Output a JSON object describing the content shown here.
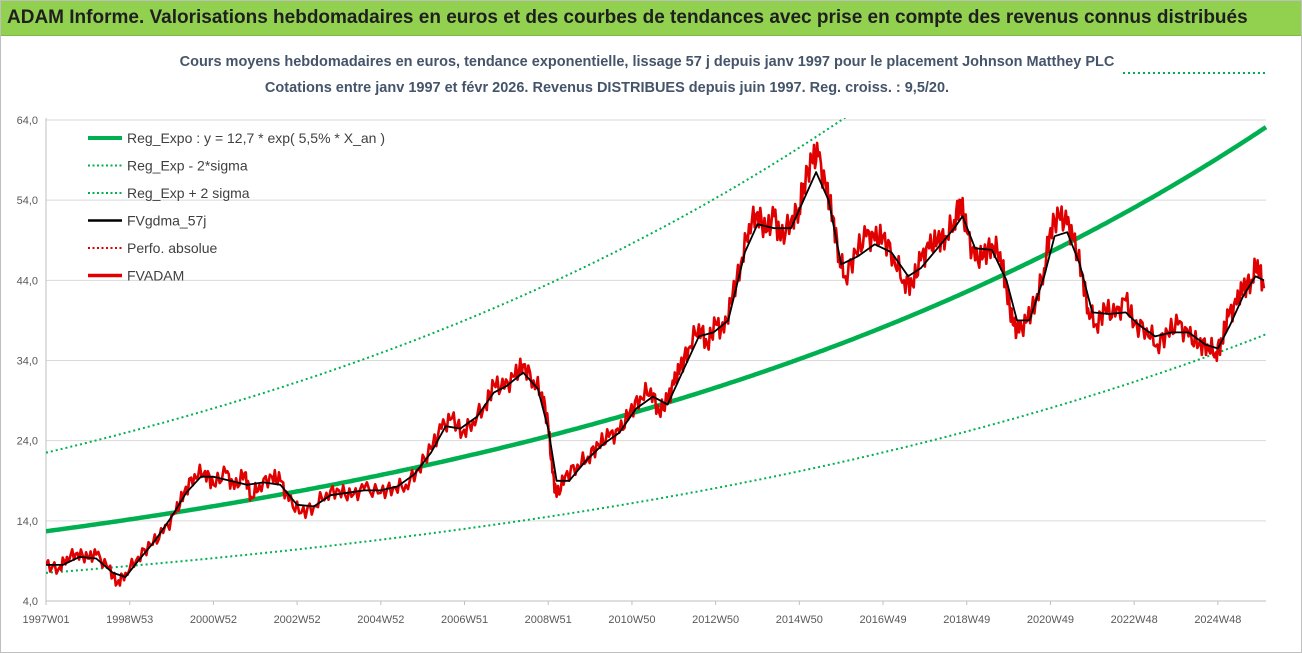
{
  "banner": {
    "title": "ADAM Informe. Valorisations hebdomadaires en euros et des courbes de tendances avec prise en compte des revenus connus distribués",
    "bg_color": "#92d050"
  },
  "chart_data": {
    "type": "line",
    "title_line1": "Cours moyens hebdomadaires en euros, tendance exponentielle, lissage 57 j depuis janv 1997  pour le placement Johnson Matthey PLC",
    "title_line2": "Cotations entre janv 1997 et févr 2026. Revenus DISTRIBUES depuis juin 1997.  Reg. croiss. : 9,5/20.",
    "ylim": [
      4,
      64
    ],
    "xlim": [
      1997.0,
      2026.15
    ],
    "yticks": [
      "4,0",
      "14,0",
      "24,0",
      "34,0",
      "44,0",
      "54,0",
      "64,0"
    ],
    "xticks": [
      {
        "label": "1997W01",
        "t": 1997.0
      },
      {
        "label": "1998W53",
        "t": 1999.0
      },
      {
        "label": "2000W52",
        "t": 2001.0
      },
      {
        "label": "2002W52",
        "t": 2003.0
      },
      {
        "label": "2004W52",
        "t": 2005.0
      },
      {
        "label": "2006W51",
        "t": 2007.0
      },
      {
        "label": "2008W51",
        "t": 2009.0
      },
      {
        "label": "2010W50",
        "t": 2011.0
      },
      {
        "label": "2012W50",
        "t": 2013.0
      },
      {
        "label": "2014W50",
        "t": 2015.0
      },
      {
        "label": "2016W49",
        "t": 2017.0
      },
      {
        "label": "2018W49",
        "t": 2019.0
      },
      {
        "label": "2020W49",
        "t": 2021.0
      },
      {
        "label": "2022W48",
        "t": 2023.0
      },
      {
        "label": "2024W48",
        "t": 2025.0
      }
    ],
    "grid": "horizontal",
    "legend_position": "top-left",
    "legend": [
      {
        "label": "Reg_Expo : y = 12,7 * exp( 5,5% *  X_an )",
        "color": "#00b050",
        "style": "solid-thick"
      },
      {
        "label": "Reg_Exp - 2*sigma",
        "color": "#00b050",
        "style": "dotted"
      },
      {
        "label": "Reg_Exp + 2 sigma",
        "color": "#00b050",
        "style": "dotted"
      },
      {
        "label": "FVgdma_57j",
        "color": "#000000",
        "style": "solid"
      },
      {
        "label": "Perfo. absolue",
        "color": "#e00000",
        "style": "dotted"
      },
      {
        "label": "FVADAM",
        "color": "#e00000",
        "style": "solid-thick"
      }
    ],
    "regression": {
      "a": 12.7,
      "rate": 0.055,
      "t0": 1997.0
    },
    "lower_band": {
      "a": 7.5,
      "rate": 0.055
    },
    "upper_band": {
      "a": 22.5,
      "rate": 0.055
    },
    "series": [
      {
        "name": "FVADAM",
        "color": "#e00000",
        "points": [
          [
            1997.0,
            8.5
          ],
          [
            1997.3,
            8.0
          ],
          [
            1997.5,
            9.5
          ],
          [
            1997.75,
            10.0
          ],
          [
            1998.0,
            9.3
          ],
          [
            1998.2,
            9.8
          ],
          [
            1998.5,
            8.0
          ],
          [
            1998.7,
            6.2
          ],
          [
            1998.9,
            7.5
          ],
          [
            1999.2,
            9.5
          ],
          [
            1999.5,
            11.0
          ],
          [
            1999.8,
            12.5
          ],
          [
            2000.1,
            15.0
          ],
          [
            2000.3,
            17.5
          ],
          [
            2000.55,
            19.8
          ],
          [
            2000.8,
            20.2
          ],
          [
            2001.0,
            18.5
          ],
          [
            2001.3,
            20.0
          ],
          [
            2001.5,
            18.0
          ],
          [
            2001.75,
            20.0
          ],
          [
            2001.9,
            17.0
          ],
          [
            2002.1,
            18.5
          ],
          [
            2002.4,
            19.5
          ],
          [
            2002.6,
            19.0
          ],
          [
            2002.8,
            16.5
          ],
          [
            2003.1,
            15.0
          ],
          [
            2003.4,
            15.8
          ],
          [
            2003.7,
            17.5
          ],
          [
            2004.0,
            17.8
          ],
          [
            2004.3,
            17.0
          ],
          [
            2004.6,
            18.0
          ],
          [
            2005.0,
            17.5
          ],
          [
            2005.3,
            18.2
          ],
          [
            2005.6,
            18.5
          ],
          [
            2005.9,
            20.5
          ],
          [
            2006.2,
            23.0
          ],
          [
            2006.45,
            25.5
          ],
          [
            2006.7,
            26.8
          ],
          [
            2006.95,
            25.0
          ],
          [
            2007.2,
            26.5
          ],
          [
            2007.5,
            28.5
          ],
          [
            2007.7,
            31.0
          ],
          [
            2007.95,
            30.5
          ],
          [
            2008.2,
            32.0
          ],
          [
            2008.4,
            33.5
          ],
          [
            2008.65,
            31.5
          ],
          [
            2008.85,
            30.0
          ],
          [
            2009.0,
            26.0
          ],
          [
            2009.1,
            20.0
          ],
          [
            2009.2,
            17.0
          ],
          [
            2009.4,
            19.5
          ],
          [
            2009.7,
            21.0
          ],
          [
            2009.95,
            22.0
          ],
          [
            2010.2,
            23.5
          ],
          [
            2010.45,
            24.5
          ],
          [
            2010.7,
            25.0
          ],
          [
            2010.95,
            27.5
          ],
          [
            2011.2,
            29.5
          ],
          [
            2011.45,
            30.5
          ],
          [
            2011.65,
            27.5
          ],
          [
            2011.85,
            29.0
          ],
          [
            2012.0,
            31.0
          ],
          [
            2012.15,
            33.0
          ],
          [
            2012.35,
            35.5
          ],
          [
            2012.6,
            38.5
          ],
          [
            2012.8,
            36.0
          ],
          [
            2013.0,
            38.5
          ],
          [
            2013.2,
            37.5
          ],
          [
            2013.4,
            42.0
          ],
          [
            2013.6,
            46.0
          ],
          [
            2013.8,
            51.0
          ],
          [
            2014.0,
            52.5
          ],
          [
            2014.2,
            50.0
          ],
          [
            2014.4,
            52.0
          ],
          [
            2014.55,
            49.0
          ],
          [
            2014.8,
            51.5
          ],
          [
            2015.0,
            53.0
          ],
          [
            2015.1,
            56.0
          ],
          [
            2015.3,
            59.0
          ],
          [
            2015.45,
            59.5
          ],
          [
            2015.65,
            55.0
          ],
          [
            2015.8,
            52.0
          ],
          [
            2015.95,
            47.0
          ],
          [
            2016.1,
            44.5
          ],
          [
            2016.35,
            47.5
          ],
          [
            2016.6,
            49.5
          ],
          [
            2016.8,
            49.0
          ],
          [
            2017.0,
            49.5
          ],
          [
            2017.25,
            47.0
          ],
          [
            2017.5,
            44.0
          ],
          [
            2017.7,
            43.5
          ],
          [
            2017.9,
            46.5
          ],
          [
            2018.1,
            48.0
          ],
          [
            2018.3,
            49.0
          ],
          [
            2018.5,
            49.5
          ],
          [
            2018.7,
            51.5
          ],
          [
            2018.85,
            54.0
          ],
          [
            2019.0,
            50.0
          ],
          [
            2019.2,
            46.5
          ],
          [
            2019.4,
            47.0
          ],
          [
            2019.6,
            48.5
          ],
          [
            2019.8,
            47.5
          ],
          [
            2019.95,
            43.0
          ],
          [
            2020.1,
            38.5
          ],
          [
            2020.25,
            37.5
          ],
          [
            2020.45,
            39.0
          ],
          [
            2020.65,
            41.5
          ],
          [
            2020.85,
            45.5
          ],
          [
            2021.0,
            50.5
          ],
          [
            2021.2,
            52.0
          ],
          [
            2021.4,
            51.0
          ],
          [
            2021.55,
            49.0
          ],
          [
            2021.75,
            45.0
          ],
          [
            2021.9,
            40.5
          ],
          [
            2022.1,
            38.5
          ],
          [
            2022.3,
            40.5
          ],
          [
            2022.55,
            39.5
          ],
          [
            2022.8,
            41.5
          ],
          [
            2023.0,
            38.5
          ],
          [
            2023.3,
            38.0
          ],
          [
            2023.55,
            36.0
          ],
          [
            2023.8,
            37.5
          ],
          [
            2024.05,
            38.5
          ],
          [
            2024.3,
            37.0
          ],
          [
            2024.55,
            36.0
          ],
          [
            2024.75,
            36.0
          ],
          [
            2024.95,
            35.0
          ],
          [
            2025.1,
            36.5
          ],
          [
            2025.25,
            39.5
          ],
          [
            2025.45,
            41.0
          ],
          [
            2025.6,
            43.0
          ],
          [
            2025.8,
            44.0
          ],
          [
            2025.95,
            46.5
          ],
          [
            2026.1,
            43.0
          ]
        ]
      },
      {
        "name": "FVgdma_57j",
        "color": "#000000",
        "points": [
          [
            1997.0,
            8.5
          ],
          [
            1997.4,
            8.5
          ],
          [
            1997.8,
            9.5
          ],
          [
            1998.2,
            9.3
          ],
          [
            1998.6,
            7.5
          ],
          [
            1998.9,
            7.0
          ],
          [
            1999.2,
            9.0
          ],
          [
            1999.6,
            11.5
          ],
          [
            2000.0,
            14.5
          ],
          [
            2000.35,
            17.5
          ],
          [
            2000.7,
            19.5
          ],
          [
            2001.0,
            19.5
          ],
          [
            2001.4,
            19.0
          ],
          [
            2001.8,
            18.5
          ],
          [
            2002.2,
            18.8
          ],
          [
            2002.6,
            18.5
          ],
          [
            2003.0,
            16.0
          ],
          [
            2003.4,
            15.8
          ],
          [
            2003.8,
            17.2
          ],
          [
            2004.2,
            17.5
          ],
          [
            2004.6,
            17.8
          ],
          [
            2005.0,
            17.8
          ],
          [
            2005.4,
            18.3
          ],
          [
            2005.8,
            19.8
          ],
          [
            2006.2,
            22.5
          ],
          [
            2006.55,
            25.8
          ],
          [
            2006.9,
            25.5
          ],
          [
            2007.3,
            27.0
          ],
          [
            2007.7,
            30.0
          ],
          [
            2008.0,
            30.8
          ],
          [
            2008.4,
            32.5
          ],
          [
            2008.75,
            30.5
          ],
          [
            2009.0,
            25.5
          ],
          [
            2009.2,
            19.0
          ],
          [
            2009.5,
            19.0
          ],
          [
            2009.9,
            21.5
          ],
          [
            2010.3,
            23.5
          ],
          [
            2010.7,
            25.0
          ],
          [
            2011.1,
            28.0
          ],
          [
            2011.5,
            29.5
          ],
          [
            2011.85,
            28.5
          ],
          [
            2012.2,
            32.5
          ],
          [
            2012.6,
            37.0
          ],
          [
            2012.95,
            37.5
          ],
          [
            2013.3,
            39.0
          ],
          [
            2013.7,
            47.5
          ],
          [
            2014.0,
            51.0
          ],
          [
            2014.4,
            50.5
          ],
          [
            2014.8,
            50.5
          ],
          [
            2015.1,
            54.0
          ],
          [
            2015.4,
            57.5
          ],
          [
            2015.7,
            54.0
          ],
          [
            2016.0,
            46.0
          ],
          [
            2016.4,
            47.0
          ],
          [
            2016.8,
            48.5
          ],
          [
            2017.2,
            47.5
          ],
          [
            2017.6,
            44.5
          ],
          [
            2017.9,
            45.5
          ],
          [
            2018.3,
            48.0
          ],
          [
            2018.7,
            50.5
          ],
          [
            2018.9,
            52.0
          ],
          [
            2019.2,
            48.0
          ],
          [
            2019.6,
            47.8
          ],
          [
            2019.95,
            44.0
          ],
          [
            2020.2,
            39.0
          ],
          [
            2020.5,
            39.0
          ],
          [
            2020.85,
            44.5
          ],
          [
            2021.1,
            49.5
          ],
          [
            2021.4,
            50.0
          ],
          [
            2021.7,
            46.0
          ],
          [
            2022.0,
            40.0
          ],
          [
            2022.4,
            39.8
          ],
          [
            2022.8,
            40.0
          ],
          [
            2023.1,
            38.5
          ],
          [
            2023.5,
            37.0
          ],
          [
            2023.9,
            37.5
          ],
          [
            2024.3,
            37.5
          ],
          [
            2024.7,
            36.0
          ],
          [
            2025.0,
            35.5
          ],
          [
            2025.3,
            38.5
          ],
          [
            2025.6,
            42.0
          ],
          [
            2025.9,
            44.5
          ],
          [
            2026.1,
            44.0
          ]
        ]
      }
    ]
  }
}
